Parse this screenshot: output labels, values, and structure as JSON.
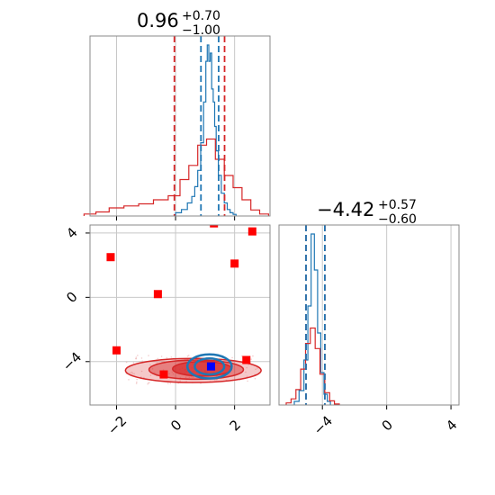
{
  "colors": {
    "red": "#d62728",
    "blue": "#1f77b4",
    "grid": "#c8c8c8",
    "frame": "#888888",
    "marker_red": "#ff0000",
    "marker_blue": "#0000ff"
  },
  "titles": {
    "p1": {
      "main": "0.96",
      "plus": "+0.70",
      "minus": "−1.00"
    },
    "p2": {
      "main": "−4.42",
      "plus": "+0.57",
      "minus": "−0.60"
    }
  },
  "chart_data": [
    {
      "type": "histogram",
      "panel": "top-left",
      "xlim": [
        -2.9,
        3.2
      ],
      "x_ticks": [
        -2,
        0,
        2
      ],
      "series": [
        {
          "color": "#1f77b4",
          "x": [
            0.1,
            0.3,
            0.5,
            0.6,
            0.7,
            0.8,
            0.9,
            1.0,
            1.05,
            1.1,
            1.15,
            1.2,
            1.25,
            1.3,
            1.35,
            1.4,
            1.5,
            1.6,
            1.7,
            1.8,
            1.9,
            2.0
          ],
          "y": [
            2,
            4,
            8,
            12,
            18,
            28,
            45,
            70,
            95,
            105,
            95,
            100,
            78,
            70,
            55,
            40,
            25,
            14,
            8,
            4,
            2,
            1
          ]
        },
        {
          "color": "#d62728",
          "x": [
            -2.9,
            -2.5,
            -2.0,
            -1.5,
            -1.0,
            -0.5,
            0.0,
            0.3,
            0.6,
            0.9,
            1.2,
            1.5,
            1.8,
            2.1,
            2.4,
            2.7,
            3.0
          ],
          "y": [
            1,
            2,
            4,
            5,
            6,
            8,
            10,
            18,
            25,
            35,
            38,
            28,
            20,
            14,
            8,
            3,
            1
          ]
        }
      ],
      "vlines": [
        {
          "color": "#d62728",
          "x": [
            -0.04,
            1.66
          ]
        },
        {
          "color": "#1f77b4",
          "x": [
            0.86,
            1.46
          ]
        }
      ]
    },
    {
      "type": "scatter",
      "panel": "bottom-left",
      "xlim": [
        -2.9,
        3.2
      ],
      "ylim": [
        -6.7,
        4.5
      ],
      "x_ticks": [
        -2,
        0,
        2
      ],
      "y_ticks": [
        -4,
        0,
        4
      ],
      "red_points": [
        {
          "x": 1.3,
          "y": 4.6
        },
        {
          "x": 2.6,
          "y": 4.1
        },
        {
          "x": -2.2,
          "y": 2.5
        },
        {
          "x": 2.0,
          "y": 2.1
        },
        {
          "x": -0.6,
          "y": 0.2
        },
        {
          "x": -2.0,
          "y": -3.3
        },
        {
          "x": -0.4,
          "y": -4.8
        },
        {
          "x": 2.4,
          "y": -3.9
        }
      ],
      "blue_points": [
        {
          "x": 1.2,
          "y": -4.3
        }
      ],
      "contours": [
        {
          "color": "#d62728",
          "cx": 0.6,
          "cy": -4.55,
          "rx": 2.3,
          "ry": 0.75
        },
        {
          "color": "#d62728",
          "cx": 0.7,
          "cy": -4.5,
          "rx": 1.6,
          "ry": 0.6
        },
        {
          "color": "#d62728",
          "cx": 0.9,
          "cy": -4.45,
          "rx": 1.0,
          "ry": 0.45
        },
        {
          "color": "#1f77b4",
          "cx": 1.15,
          "cy": -4.3,
          "rx": 0.75,
          "ry": 0.75
        },
        {
          "color": "#1f77b4",
          "cx": 1.15,
          "cy": -4.3,
          "rx": 0.5,
          "ry": 0.5
        }
      ]
    },
    {
      "type": "histogram",
      "panel": "bottom-right",
      "xlim": [
        -6.7,
        4.5
      ],
      "x_ticks": [
        -4,
        0,
        4
      ],
      "series": [
        {
          "color": "#1f77b4",
          "x": [
            -5.6,
            -5.3,
            -5.0,
            -4.8,
            -4.6,
            -4.4,
            -4.2,
            -4.0,
            -3.8,
            -3.6
          ],
          "y": [
            2,
            8,
            25,
            55,
            95,
            75,
            40,
            18,
            6,
            2
          ]
        },
        {
          "color": "#d62728",
          "x": [
            -6.1,
            -5.8,
            -5.5,
            -5.2,
            -4.9,
            -4.6,
            -4.3,
            -4.0,
            -3.7,
            -3.4,
            -3.1
          ],
          "y": [
            2,
            6,
            15,
            35,
            60,
            75,
            55,
            30,
            12,
            4,
            1
          ]
        }
      ],
      "vlines": [
        {
          "color": "#d62728",
          "x": [
            -5.02,
            -3.85
          ]
        },
        {
          "color": "#1f77b4",
          "x": [
            -5.02,
            -3.85
          ]
        }
      ]
    }
  ]
}
